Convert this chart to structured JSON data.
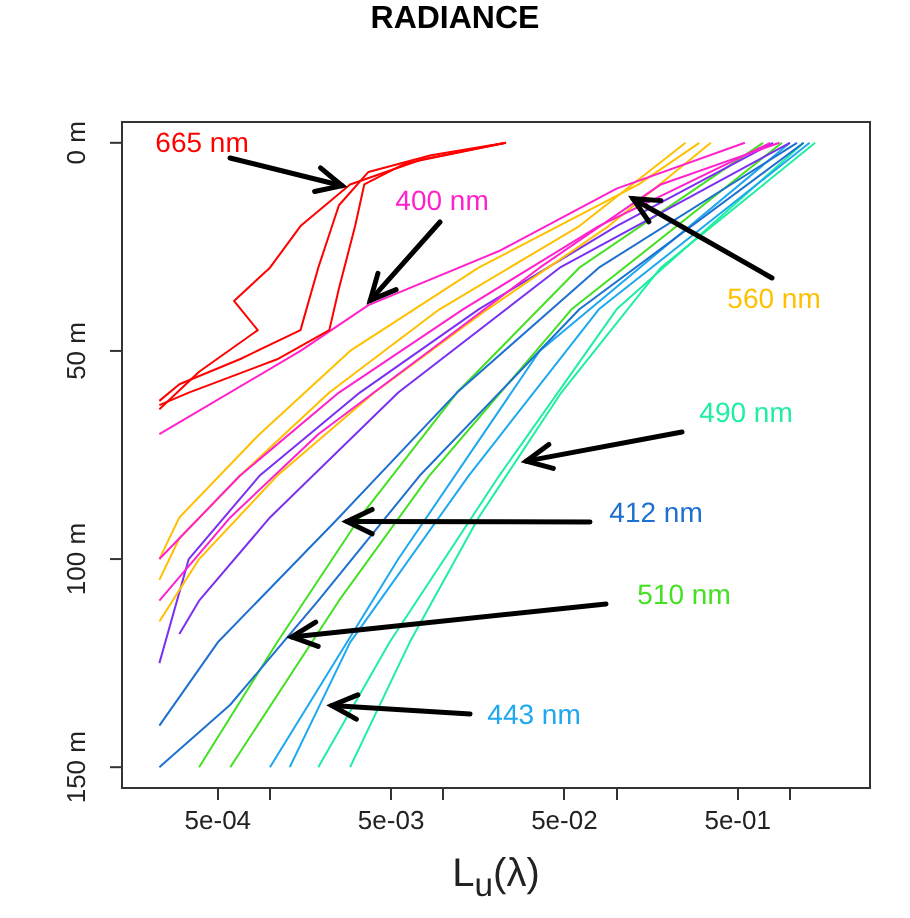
{
  "chart_data": {
    "type": "line",
    "title": "RADIANCE",
    "xlabel": "L$_{u}$(λ)",
    "log": "x",
    "legend": false,
    "grid": false,
    "line_style": "solid",
    "xlim": [
      0.00014,
      2.9
    ],
    "xticks": [
      {
        "value": 0.0005,
        "label": "5e-04"
      },
      {
        "value": 0.001,
        "label": null
      },
      {
        "value": 0.005,
        "label": "5e-03"
      },
      {
        "value": 0.01,
        "label": null
      },
      {
        "value": 0.05,
        "label": "5e-02"
      },
      {
        "value": 0.1,
        "label": null
      },
      {
        "value": 0.5,
        "label": "5e-01"
      },
      {
        "value": 1,
        "label": null
      }
    ],
    "ylim": [
      155,
      -5
    ],
    "yticks": [
      {
        "value": 0,
        "label": "0 m"
      },
      {
        "value": 50,
        "label": "50 m"
      },
      {
        "value": 100,
        "label": "100 m"
      },
      {
        "value": 150,
        "label": "150 m"
      }
    ],
    "series": [
      {
        "name": "665 nm",
        "color": "#ff0000",
        "x": [
          0.023,
          0.0085,
          0.0037,
          0.0025,
          0.0019,
          0.0015,
          0.00067,
          0.0003,
          0.00023
        ],
        "values": [
          0,
          3,
          7,
          15,
          30,
          45,
          52,
          58,
          62
        ]
      },
      {
        "color": "#ff0000",
        "x": [
          0.023,
          0.0075,
          0.0029,
          0.0015,
          0.001,
          0.00062,
          0.00085,
          0.00039,
          0.00023
        ],
        "values": [
          0,
          4,
          10,
          20,
          30,
          38,
          45,
          55,
          64
        ]
      },
      {
        "color": "#ff0000",
        "x": [
          0.023,
          0.006,
          0.0035,
          0.0031,
          0.0025,
          0.0022,
          0.0011,
          0.00034,
          0.00023
        ],
        "values": [
          0,
          5,
          10,
          20,
          35,
          45,
          52,
          60,
          63
        ]
      },
      {
        "name": "400 nm",
        "color": "#ff22cc",
        "x": [
          0.55,
          0.1,
          0.021,
          0.0037,
          0.0015,
          0.00023
        ],
        "values": [
          0,
          11,
          26,
          39,
          50,
          70
        ]
      },
      {
        "color": "#ff22cc",
        "x": [
          0.77,
          0.079,
          0.013,
          0.0025,
          0.00067,
          0.00023
        ],
        "values": [
          0,
          20,
          40,
          60,
          80,
          100
        ]
      },
      {
        "color": "#ff22cc",
        "x": [
          0.87,
          0.18,
          0.036,
          0.0083,
          0.0019,
          0.00059,
          0.00023
        ],
        "values": [
          0,
          10,
          30,
          50,
          70,
          90,
          110
        ]
      },
      {
        "name": "560 nm",
        "color": "#ffc000",
        "x": [
          0.3,
          0.134,
          0.016,
          0.0029,
          0.00087,
          0.0003,
          0.00023
        ],
        "values": [
          0,
          10,
          30,
          50,
          70,
          90,
          100
        ]
      },
      {
        "color": "#ffc000",
        "x": [
          0.25,
          0.061,
          0.0095,
          0.0022,
          0.00067,
          0.0003,
          0.00023
        ],
        "values": [
          0,
          20,
          40,
          60,
          80,
          95,
          105
        ]
      },
      {
        "color": "#ffc000",
        "x": [
          0.35,
          0.09,
          0.018,
          0.004,
          0.0011,
          0.00039,
          0.00023
        ],
        "values": [
          0,
          20,
          40,
          60,
          80,
          100,
          115
        ]
      },
      {
        "color": "#7a30f0",
        "x": [
          0.8,
          0.1,
          0.016,
          0.0033,
          0.00087,
          0.00034,
          0.00023
        ],
        "values": [
          0,
          20,
          40,
          60,
          80,
          100,
          125
        ]
      },
      {
        "color": "#7a30f0",
        "x": [
          1,
          0.047,
          0.0055,
          0.001,
          0.00039,
          0.0003
        ],
        "values": [
          0,
          30,
          60,
          90,
          110,
          118
        ]
      },
      {
        "name": "412 nm",
        "color": "#1e70d0",
        "x": [
          1.1,
          0.079,
          0.012,
          0.0025,
          0.0005,
          0.00023
        ],
        "values": [
          0,
          30,
          60,
          90,
          120,
          140
        ]
      },
      {
        "color": "#1e70d0",
        "x": [
          1.2,
          0.061,
          0.0073,
          0.0019,
          0.00059,
          0.00023
        ],
        "values": [
          0,
          40,
          80,
          110,
          135,
          150
        ]
      },
      {
        "name": "510 nm",
        "color": "#44e022",
        "x": [
          0.7,
          0.061,
          0.012,
          0.0033,
          0.0011,
          0.00039
        ],
        "values": [
          0,
          30,
          60,
          90,
          120,
          150
        ]
      },
      {
        "color": "#44e022",
        "x": [
          0.9,
          0.055,
          0.0083,
          0.0025,
          0.00059
        ],
        "values": [
          0,
          40,
          80,
          110,
          150
        ]
      },
      {
        "name": "443 nm",
        "color": "#1ea8f0",
        "x": [
          1.3,
          0.079,
          0.014,
          0.0029,
          0.0013
        ],
        "values": [
          0,
          40,
          80,
          120,
          150
        ]
      },
      {
        "color": "#1ea8f0",
        "x": [
          1,
          0.036,
          0.0055,
          0.001
        ],
        "values": [
          0,
          50,
          100,
          150
        ]
      },
      {
        "name": "490 nm",
        "color": "#20eea0",
        "x": [
          1.4,
          0.18,
          0.048,
          0.016,
          0.0064,
          0.0029
        ],
        "values": [
          0,
          30,
          60,
          90,
          120,
          150
        ]
      },
      {
        "color": "#20eea0",
        "x": [
          1.2,
          0.1,
          0.021,
          0.0049,
          0.0019
        ],
        "values": [
          0,
          40,
          80,
          120,
          150
        ]
      }
    ]
  }
}
